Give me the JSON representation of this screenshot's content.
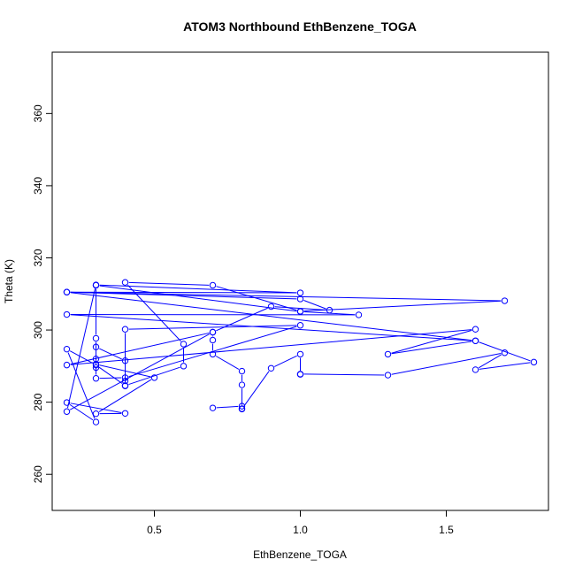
{
  "chart_data": {
    "type": "line",
    "title": "ATOM3 Northbound EthBenzene_TOGA",
    "xlabel": "EthBenzene_TOGA",
    "ylabel": "Theta (K)",
    "xlim": [
      0.15,
      1.85
    ],
    "ylim": [
      250,
      377
    ],
    "xticks": [
      0.5,
      1.0,
      1.5
    ],
    "xtick_labels": [
      "0.5",
      "1.0",
      "1.5"
    ],
    "yticks": [
      260,
      280,
      300,
      320,
      340,
      360
    ],
    "ytick_labels": [
      "260",
      "280",
      "300",
      "320",
      "340",
      "360"
    ],
    "grid": false,
    "legend": "none",
    "color": "#0000ff",
    "series": [
      {
        "marker": "open-circle",
        "points": [
          [
            0.7,
            278.4
          ],
          [
            0.8,
            278.9
          ],
          [
            0.8,
            278.2
          ],
          [
            0.8,
            284.8
          ],
          [
            0.8,
            288.6
          ],
          [
            0.7,
            293.3
          ],
          [
            0.7,
            297.2
          ],
          [
            0.7,
            299.4
          ],
          [
            0.2,
            290.3
          ],
          [
            1.6,
            300.2
          ],
          [
            1.3,
            293.3
          ],
          [
            1.6,
            297.0
          ],
          [
            0.2,
            304.3
          ],
          [
            1.2,
            304.2
          ],
          [
            1.0,
            305.1
          ],
          [
            0.3,
            312.4
          ],
          [
            0.3,
            297.7
          ],
          [
            0.3,
            292.0
          ],
          [
            0.3,
            289.6
          ],
          [
            0.3,
            295.3
          ],
          [
            0.4,
            291.5
          ],
          [
            0.4,
            285.9
          ],
          [
            0.4,
            284.5
          ],
          [
            0.4,
            300.2
          ],
          [
            1.0,
            301.3
          ],
          [
            0.4,
            286.8
          ],
          [
            0.3,
            286.6
          ],
          [
            0.3,
            290.5
          ],
          [
            0.5,
            286.8
          ],
          [
            0.3,
            276.8
          ],
          [
            0.4,
            276.9
          ],
          [
            0.2,
            279.9
          ],
          [
            0.3,
            274.5
          ],
          [
            0.2,
            294.7
          ],
          [
            0.3,
            290.3
          ],
          [
            0.4,
            284.6
          ],
          [
            0.6,
            290.0
          ],
          [
            0.6,
            296.1
          ],
          [
            0.4,
            313.2
          ],
          [
            0.7,
            312.4
          ],
          [
            1.0,
            305.2
          ],
          [
            1.7,
            308.1
          ],
          [
            0.2,
            310.5
          ],
          [
            1.0,
            310.3
          ],
          [
            0.3,
            312.5
          ],
          [
            0.2,
            277.4
          ],
          [
            0.7,
            299.4
          ],
          [
            0.9,
            306.5
          ],
          [
            1.1,
            305.5
          ],
          [
            1.0,
            308.6
          ],
          [
            0.2,
            310.5
          ],
          [
            1.6,
            297.0
          ],
          [
            1.8,
            291.1
          ],
          [
            1.6,
            289.0
          ],
          [
            1.7,
            293.7
          ],
          [
            1.3,
            287.5
          ],
          [
            1.0,
            287.8
          ],
          [
            1.0,
            287.7
          ],
          [
            1.0,
            293.3
          ],
          [
            0.9,
            289.4
          ],
          [
            0.8,
            278.1
          ]
        ]
      }
    ]
  }
}
